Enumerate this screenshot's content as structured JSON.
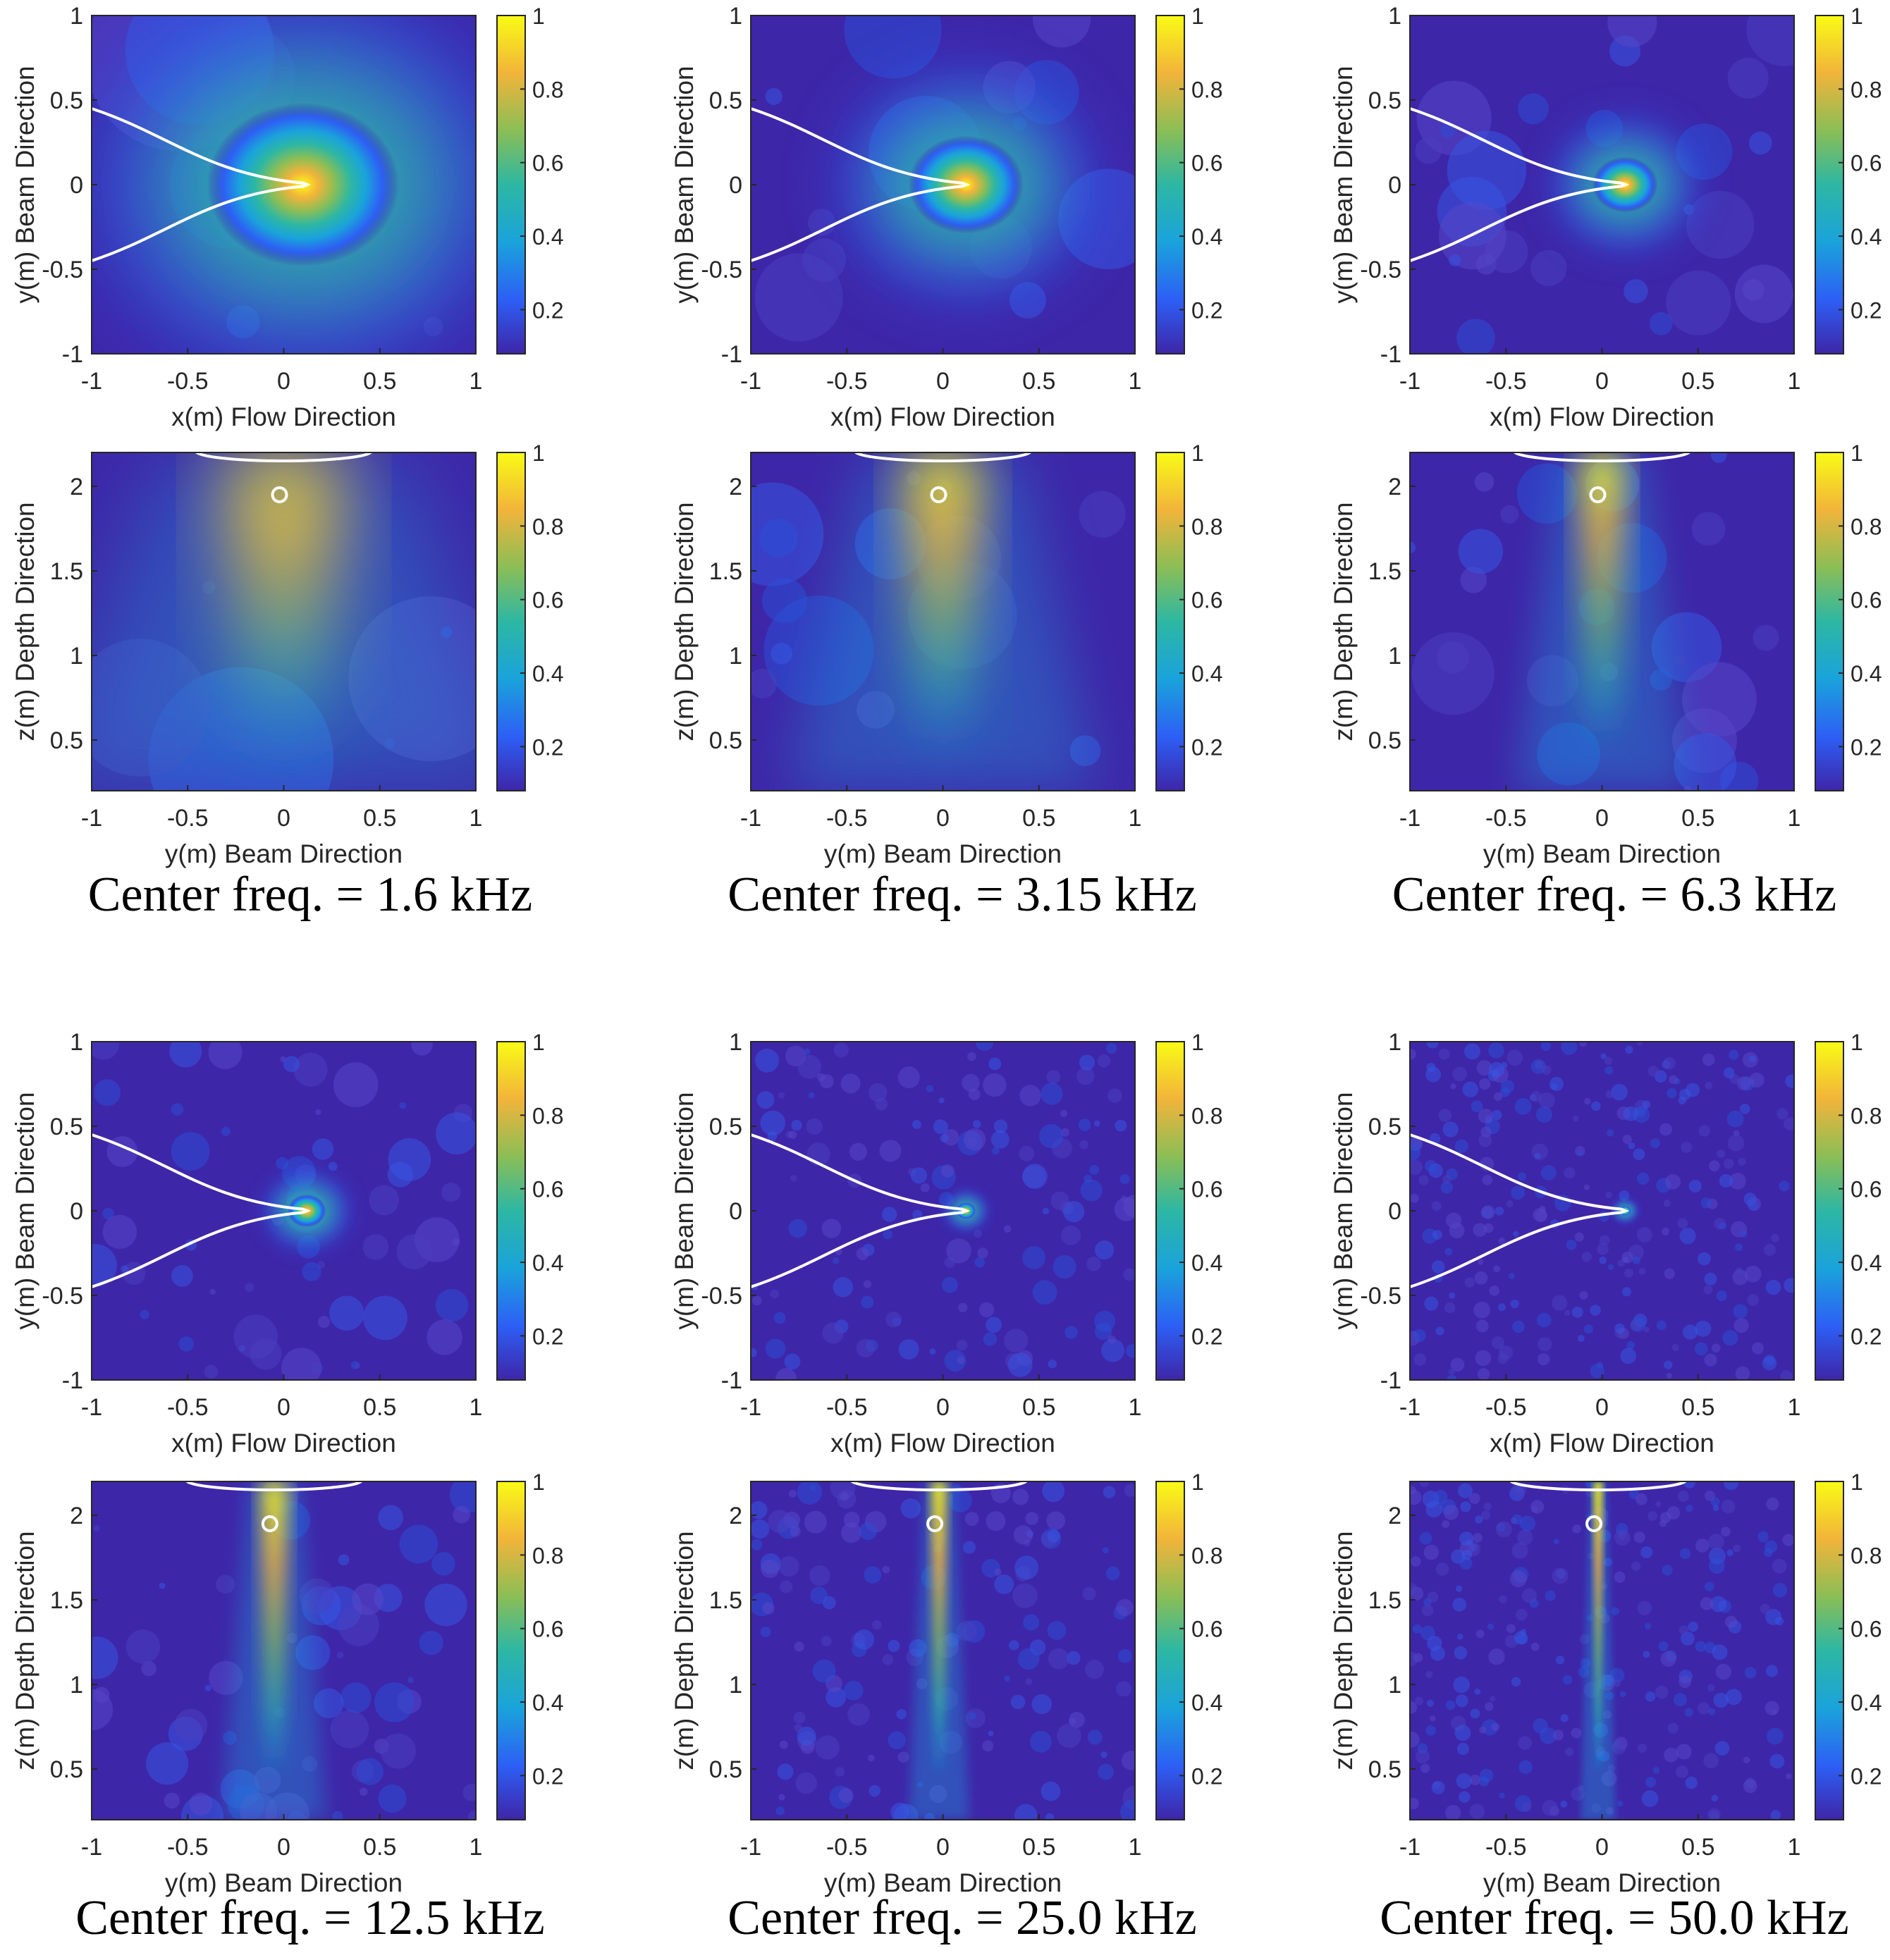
{
  "chart_data": [
    {
      "type": "heatmap",
      "title": "",
      "xlabel": "x(m) Flow Direction",
      "ylabel": "y(m) Beam Direction",
      "xlim": [
        -1,
        1
      ],
      "ylim": [
        -1,
        1
      ],
      "xticks": [
        "-1",
        "-0.5",
        "0",
        "0.5",
        "1"
      ],
      "yticks": [
        "-1",
        "-0.5",
        "0",
        "0.5",
        "1"
      ],
      "colorbar": {
        "range": [
          0.08,
          1
        ],
        "ticks": [
          "0.2",
          "0.4",
          "0.6",
          "0.8",
          "1"
        ]
      },
      "source_peak": {
        "x": 0.1,
        "y": 0
      },
      "spot_radius": 0.5,
      "center_freq_khz": 1.6
    },
    {
      "type": "heatmap",
      "title": "",
      "xlabel": "x(m) Flow Direction",
      "ylabel": "y(m) Beam Direction",
      "xlim": [
        -1,
        1
      ],
      "ylim": [
        -1,
        1
      ],
      "xticks": [
        "-1",
        "-0.5",
        "0",
        "0.5",
        "1"
      ],
      "yticks": [
        "-1",
        "-0.5",
        "0",
        "0.5",
        "1"
      ],
      "colorbar": {
        "range": [
          0.08,
          1
        ],
        "ticks": [
          "0.2",
          "0.4",
          "0.6",
          "0.8",
          "1"
        ]
      },
      "source_peak": {
        "x": 0.12,
        "y": 0
      },
      "spot_radius": 0.3,
      "center_freq_khz": 3.15
    },
    {
      "type": "heatmap",
      "title": "",
      "xlabel": "x(m) Flow Direction",
      "ylabel": "y(m) Beam Direction",
      "xlim": [
        -1,
        1
      ],
      "ylim": [
        -1,
        1
      ],
      "xticks": [
        "-1",
        "-0.5",
        "0",
        "0.5",
        "1"
      ],
      "yticks": [
        "-1",
        "-0.5",
        "0",
        "0.5",
        "1"
      ],
      "colorbar": {
        "range": [
          0.08,
          1
        ],
        "ticks": [
          "0.2",
          "0.4",
          "0.6",
          "0.8",
          "1"
        ]
      },
      "source_peak": {
        "x": 0.12,
        "y": 0
      },
      "spot_radius": 0.17,
      "center_freq_khz": 6.3
    },
    {
      "type": "heatmap",
      "title": "",
      "xlabel": "x(m) Flow Direction",
      "ylabel": "y(m) Beam Direction",
      "xlim": [
        -1,
        1
      ],
      "ylim": [
        -1,
        1
      ],
      "xticks": [
        "-1",
        "-0.5",
        "0",
        "0.5",
        "1"
      ],
      "yticks": [
        "-1",
        "-0.5",
        "0",
        "0.5",
        "1"
      ],
      "colorbar": {
        "range": [
          0.08,
          1
        ],
        "ticks": [
          "0.2",
          "0.4",
          "0.6",
          "0.8",
          "1"
        ]
      },
      "source_peak": {
        "x": 0.12,
        "y": 0
      },
      "spot_radius": 0.1,
      "center_freq_khz": 12.5
    },
    {
      "type": "heatmap",
      "title": "",
      "xlabel": "x(m) Flow Direction",
      "ylabel": "y(m) Beam Direction",
      "xlim": [
        -1,
        1
      ],
      "ylim": [
        -1,
        1
      ],
      "xticks": [
        "-1",
        "-0.5",
        "0",
        "0.5",
        "1"
      ],
      "yticks": [
        "-1",
        "-0.5",
        "0",
        "0.5",
        "1"
      ],
      "colorbar": {
        "range": [
          0.08,
          1
        ],
        "ticks": [
          "0.2",
          "0.4",
          "0.6",
          "0.8",
          "1"
        ]
      },
      "source_peak": {
        "x": 0.12,
        "y": 0
      },
      "spot_radius": 0.05,
      "center_freq_khz": 25.0
    },
    {
      "type": "heatmap",
      "title": "",
      "xlabel": "x(m) Flow Direction",
      "ylabel": "y(m) Beam Direction",
      "xlim": [
        -1,
        1
      ],
      "ylim": [
        -1,
        1
      ],
      "xticks": [
        "-1",
        "-0.5",
        "0",
        "0.5",
        "1"
      ],
      "yticks": [
        "-1",
        "-0.5",
        "0",
        "0.5",
        "1"
      ],
      "colorbar": {
        "range": [
          0.08,
          1
        ],
        "ticks": [
          "0.2",
          "0.4",
          "0.6",
          "0.8",
          "1"
        ]
      },
      "source_peak": {
        "x": 0.12,
        "y": 0
      },
      "spot_radius": 0.03,
      "center_freq_khz": 50.0
    },
    {
      "type": "heatmap",
      "title": "",
      "xlabel": "y(m) Beam Direction",
      "ylabel": "z(m) Depth Direction",
      "xlim": [
        -1,
        1
      ],
      "ylim": [
        0.2,
        2.2
      ],
      "xticks": [
        "-1",
        "-0.5",
        "0",
        "0.5",
        "1"
      ],
      "yticks": [
        "0.5",
        "1",
        "1.5",
        "2"
      ],
      "colorbar": {
        "range": [
          0.08,
          1
        ],
        "ticks": [
          "0.2",
          "0.4",
          "0.6",
          "0.8",
          "1"
        ]
      },
      "source_peak": {
        "y": 0,
        "z": 1.95
      },
      "beam_halfwidth": 0.28,
      "center_freq_khz": 1.6
    },
    {
      "type": "heatmap",
      "title": "",
      "xlabel": "y(m) Beam Direction",
      "ylabel": "z(m) Depth Direction",
      "xlim": [
        -1,
        1
      ],
      "ylim": [
        0.2,
        2.2
      ],
      "xticks": [
        "-1",
        "-0.5",
        "0",
        "0.5",
        "1"
      ],
      "yticks": [
        "0.5",
        "1",
        "1.5",
        "2"
      ],
      "colorbar": {
        "range": [
          0.08,
          1
        ],
        "ticks": [
          "0.2",
          "0.4",
          "0.6",
          "0.8",
          "1"
        ]
      },
      "source_peak": {
        "y": 0,
        "z": 1.95
      },
      "beam_halfwidth": 0.18,
      "center_freq_khz": 3.15
    },
    {
      "type": "heatmap",
      "title": "",
      "xlabel": "y(m) Beam Direction",
      "ylabel": "z(m) Depth Direction",
      "xlim": [
        -1,
        1
      ],
      "ylim": [
        0.2,
        2.2
      ],
      "xticks": [
        "-1",
        "-0.5",
        "0",
        "0.5",
        "1"
      ],
      "yticks": [
        "0.5",
        "1",
        "1.5",
        "2"
      ],
      "colorbar": {
        "range": [
          0.08,
          1
        ],
        "ticks": [
          "0.2",
          "0.4",
          "0.6",
          "0.8",
          "1"
        ]
      },
      "source_peak": {
        "y": 0,
        "z": 1.95
      },
      "beam_halfwidth": 0.1,
      "center_freq_khz": 6.3
    },
    {
      "type": "heatmap",
      "title": "",
      "xlabel": "y(m) Beam Direction",
      "ylabel": "z(m) Depth Direction",
      "xlim": [
        -1,
        1
      ],
      "ylim": [
        0.2,
        2.2
      ],
      "xticks": [
        "-1",
        "-0.5",
        "0",
        "0.5",
        "1"
      ],
      "yticks": [
        "0.5",
        "1",
        "1.5",
        "2"
      ],
      "colorbar": {
        "range": [
          0.08,
          1
        ],
        "ticks": [
          "0.2",
          "0.4",
          "0.6",
          "0.8",
          "1"
        ]
      },
      "source_peak": {
        "y": -0.05,
        "z": 1.95
      },
      "beam_halfwidth": 0.06,
      "center_freq_khz": 12.5
    },
    {
      "type": "heatmap",
      "title": "",
      "xlabel": "y(m) Beam Direction",
      "ylabel": "z(m) Depth Direction",
      "xlim": [
        -1,
        1
      ],
      "ylim": [
        0.2,
        2.2
      ],
      "xticks": [
        "-1",
        "-0.5",
        "0",
        "0.5",
        "1"
      ],
      "yticks": [
        "0.5",
        "1",
        "1.5",
        "2"
      ],
      "colorbar": {
        "range": [
          0.08,
          1
        ],
        "ticks": [
          "0.2",
          "0.4",
          "0.6",
          "0.8",
          "1"
        ]
      },
      "source_peak": {
        "y": -0.02,
        "z": 1.95
      },
      "beam_halfwidth": 0.035,
      "center_freq_khz": 25.0
    },
    {
      "type": "heatmap",
      "title": "",
      "xlabel": "y(m) Beam Direction",
      "ylabel": "z(m) Depth Direction",
      "xlim": [
        -1,
        1
      ],
      "ylim": [
        0.2,
        2.2
      ],
      "xticks": [
        "-1",
        "-0.5",
        "0",
        "0.5",
        "1"
      ],
      "yticks": [
        "0.5",
        "1",
        "1.5",
        "2"
      ],
      "colorbar": {
        "range": [
          0.08,
          1
        ],
        "ticks": [
          "0.2",
          "0.4",
          "0.6",
          "0.8",
          "1"
        ]
      },
      "source_peak": {
        "y": -0.02,
        "z": 1.95
      },
      "beam_halfwidth": 0.02,
      "center_freq_khz": 50.0
    }
  ],
  "captions": [
    "Center freq. = 1.6 kHz",
    "Center freq. = 3.15 kHz",
    "Center freq. = 6.3 kHz",
    "Center freq. = 12.5 kHz",
    "Center freq. = 25.0 kHz",
    "Center freq. = 50.0 kHz"
  ],
  "colors": {
    "colormap": [
      "#3e26a8",
      "#2d5ff5",
      "#1aa3db",
      "#2db7a3",
      "#8bbe56",
      "#f2b43a",
      "#f9fb15"
    ],
    "overlay": "#ffffff"
  }
}
